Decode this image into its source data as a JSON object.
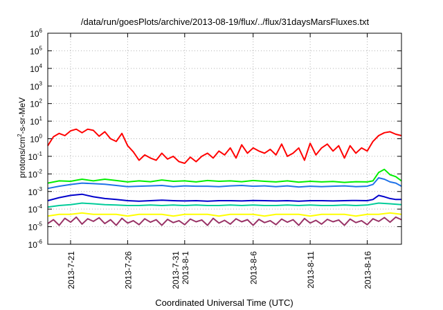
{
  "chart_data": {
    "type": "line",
    "title": "/data/run/goesPlots/archive/2013-08-19/flux/../flux/31daysMarsFluxes.txt",
    "xlabel": "Coordinated Universal Time (UTC)",
    "ylabel_parts": [
      "protons/cm",
      "2",
      "-s-sr-MeV"
    ],
    "x_start": "2013-07-19",
    "x_end": "2013-08-19",
    "xlim": [
      0,
      31
    ],
    "y_scale": "log",
    "ylim": [
      1e-06,
      1000000.0
    ],
    "grid": true,
    "x_ticks": [
      {
        "x": 2,
        "lines": [
          "2013-7-21"
        ]
      },
      {
        "x": 7,
        "lines": [
          "2013-7-26"
        ]
      },
      {
        "x": 12,
        "lines": [
          "2013-7-31",
          "2013-8-1"
        ]
      },
      {
        "x": 18,
        "lines": [
          "2013-8-6"
        ]
      },
      {
        "x": 23,
        "lines": [
          "2013-8-11"
        ]
      },
      {
        "x": 28,
        "lines": [
          "2013-8-16"
        ]
      }
    ],
    "y_ticks": [
      {
        "exp": -6,
        "label": "10",
        "sup": "-6"
      },
      {
        "exp": -5,
        "label": "10",
        "sup": "-5"
      },
      {
        "exp": -4,
        "label": "10",
        "sup": "-4"
      },
      {
        "exp": -3,
        "label": "10",
        "sup": "-3"
      },
      {
        "exp": -2,
        "label": "10",
        "sup": "-2"
      },
      {
        "exp": -1,
        "label": "10",
        "sup": "-1"
      },
      {
        "exp": 0,
        "label": "10",
        "sup": "0"
      },
      {
        "exp": 1,
        "label": "10",
        "sup": "1"
      },
      {
        "exp": 2,
        "label": "10",
        "sup": "2"
      },
      {
        "exp": 3,
        "label": "10",
        "sup": "3"
      },
      {
        "exp": 4,
        "label": "10",
        "sup": "4"
      },
      {
        "exp": 5,
        "label": "10",
        "sup": "5"
      },
      {
        "exp": 6,
        "label": "10",
        "sup": "6"
      }
    ],
    "series": [
      {
        "color": "#ff0000",
        "x": [
          0,
          0.5,
          1,
          1.5,
          2,
          2.5,
          3,
          3.5,
          4,
          4.5,
          5,
          5.5,
          6,
          6.5,
          7,
          7.5,
          8,
          8.5,
          9,
          9.5,
          10,
          10.5,
          11,
          11.5,
          12,
          12.5,
          13,
          13.5,
          14,
          14.5,
          15,
          15.5,
          16,
          16.5,
          17,
          17.5,
          18,
          18.5,
          19,
          19.5,
          20,
          20.5,
          21,
          21.5,
          22,
          22.5,
          23,
          23.5,
          24,
          24.5,
          25,
          25.5,
          26,
          26.5,
          27,
          27.5,
          28,
          28.5,
          29,
          29.5,
          30,
          30.5,
          31
        ],
        "y": [
          0.4,
          1.3,
          2.0,
          1.5,
          2.8,
          3.5,
          2.2,
          3.5,
          3.0,
          1.4,
          2.5,
          1.0,
          0.7,
          2.0,
          0.4,
          0.18,
          0.06,
          0.12,
          0.08,
          0.06,
          0.15,
          0.07,
          0.1,
          0.05,
          0.04,
          0.09,
          0.05,
          0.1,
          0.15,
          0.08,
          0.2,
          0.12,
          0.3,
          0.08,
          0.45,
          0.15,
          0.3,
          0.2,
          0.15,
          0.25,
          0.12,
          0.5,
          0.1,
          0.15,
          0.3,
          0.06,
          0.55,
          0.12,
          0.3,
          0.5,
          0.2,
          0.4,
          0.08,
          0.4,
          0.15,
          0.3,
          0.2,
          0.7,
          1.5,
          2.2,
          2.5,
          1.8,
          1.5
        ]
      },
      {
        "color": "#00ee00",
        "x": [
          0,
          1,
          2,
          3,
          4,
          5,
          6,
          7,
          8,
          9,
          10,
          11,
          12,
          13,
          14,
          15,
          16,
          17,
          18,
          19,
          20,
          21,
          22,
          23,
          24,
          25,
          26,
          27,
          28,
          28.5,
          29,
          29.5,
          30,
          30.5,
          31
        ],
        "y": [
          0.003,
          0.004,
          0.0038,
          0.005,
          0.004,
          0.005,
          0.0042,
          0.0035,
          0.004,
          0.0036,
          0.0045,
          0.0038,
          0.004,
          0.0035,
          0.0042,
          0.0038,
          0.004,
          0.0036,
          0.0042,
          0.0038,
          0.0035,
          0.004,
          0.0034,
          0.0038,
          0.0035,
          0.0037,
          0.0033,
          0.0036,
          0.0035,
          0.004,
          0.012,
          0.018,
          0.009,
          0.007,
          0.004
        ]
      },
      {
        "color": "#1e72e8",
        "x": [
          0,
          1,
          2,
          3,
          4,
          5,
          6,
          7,
          8,
          9,
          10,
          11,
          12,
          13,
          14,
          15,
          16,
          17,
          18,
          19,
          20,
          21,
          22,
          23,
          24,
          25,
          26,
          27,
          28,
          28.5,
          29,
          29.5,
          30,
          30.5,
          31
        ],
        "y": [
          0.0015,
          0.002,
          0.0025,
          0.003,
          0.0028,
          0.0026,
          0.0022,
          0.0019,
          0.002,
          0.0021,
          0.0022,
          0.0019,
          0.0021,
          0.002,
          0.002,
          0.0019,
          0.0021,
          0.0022,
          0.002,
          0.0021,
          0.0019,
          0.0021,
          0.0018,
          0.002,
          0.0019,
          0.002,
          0.0021,
          0.0019,
          0.002,
          0.0025,
          0.006,
          0.005,
          0.0035,
          0.003,
          0.002
        ]
      },
      {
        "color": "#0000cc",
        "x": [
          0,
          1,
          2,
          3,
          4,
          5,
          6,
          7,
          8,
          9,
          10,
          11,
          12,
          13,
          14,
          15,
          16,
          17,
          18,
          19,
          20,
          21,
          22,
          23,
          24,
          25,
          26,
          27,
          28,
          28.5,
          29,
          29.5,
          30,
          30.5,
          31
        ],
        "y": [
          0.0003,
          0.00045,
          0.0006,
          0.0007,
          0.0005,
          0.0004,
          0.00035,
          0.0003,
          0.00028,
          0.0003,
          0.00032,
          0.0003,
          0.00029,
          0.0003,
          0.00028,
          0.0003,
          0.0003,
          0.00029,
          0.00031,
          0.0003,
          0.00029,
          0.0003,
          0.00028,
          0.0003,
          0.0003,
          0.00029,
          0.0003,
          0.00031,
          0.0003,
          0.00035,
          0.0006,
          0.0005,
          0.0004,
          0.00035,
          0.00035
        ]
      },
      {
        "color": "#00cc99",
        "x": [
          0,
          1,
          2,
          3,
          4,
          5,
          6,
          7,
          8,
          9,
          10,
          11,
          12,
          13,
          14,
          15,
          16,
          17,
          18,
          19,
          20,
          21,
          22,
          23,
          24,
          25,
          26,
          27,
          28,
          29,
          30,
          31
        ],
        "y": [
          0.00013,
          0.00016,
          0.00018,
          0.00022,
          0.0002,
          0.00018,
          0.00017,
          0.00016,
          0.00016,
          0.00017,
          0.00016,
          0.00017,
          0.00016,
          0.00017,
          0.00016,
          0.00016,
          0.00017,
          0.00016,
          0.00017,
          0.00016,
          0.00016,
          0.00017,
          0.00016,
          0.00017,
          0.00016,
          0.00016,
          0.00017,
          0.00016,
          0.00017,
          0.00022,
          0.0002,
          0.00018
        ]
      },
      {
        "color": "#ffff00",
        "x": [
          0,
          1,
          2,
          3,
          4,
          5,
          6,
          7,
          8,
          9,
          10,
          11,
          12,
          13,
          14,
          15,
          16,
          17,
          18,
          19,
          20,
          21,
          22,
          23,
          24,
          25,
          26,
          27,
          28,
          29,
          30,
          31
        ],
        "y": [
          4e-05,
          5e-05,
          5e-05,
          6e-05,
          5e-05,
          5e-05,
          5e-05,
          4e-05,
          5e-05,
          5e-05,
          5e-05,
          4e-05,
          5e-05,
          5e-05,
          5e-05,
          4e-05,
          5e-05,
          5e-05,
          5e-05,
          4e-05,
          5e-05,
          5e-05,
          5e-05,
          4e-05,
          5e-05,
          5e-05,
          5e-05,
          4e-05,
          5e-05,
          5e-05,
          6e-05,
          5e-05
        ]
      },
      {
        "color": "#993366",
        "x": [
          0,
          0.5,
          1,
          1.5,
          2,
          2.5,
          3,
          3.5,
          4,
          4.5,
          5,
          5.5,
          6,
          6.5,
          7,
          7.5,
          8,
          8.5,
          9,
          9.5,
          10,
          10.5,
          11,
          11.5,
          12,
          12.5,
          13,
          13.5,
          14,
          14.5,
          15,
          15.5,
          16,
          16.5,
          17,
          17.5,
          18,
          18.5,
          19,
          19.5,
          20,
          20.5,
          21,
          21.5,
          22,
          22.5,
          23,
          23.5,
          24,
          24.5,
          25,
          25.5,
          26,
          26.5,
          27,
          27.5,
          28,
          28.5,
          29,
          29.5,
          30,
          30.5,
          31
        ],
        "y": [
          1.5e-05,
          2.5e-05,
          1.2e-05,
          3e-05,
          1.8e-05,
          3.5e-05,
          1.4e-05,
          2.8e-05,
          2e-05,
          3.2e-05,
          1.5e-05,
          2.5e-05,
          1.2e-05,
          3e-05,
          1.6e-05,
          2.2e-05,
          1.3e-05,
          2.8e-05,
          1.8e-05,
          2.5e-05,
          1.2e-05,
          2.6e-05,
          1.7e-05,
          2.2e-05,
          1.3e-05,
          2.7e-05,
          1.9e-05,
          2.4e-05,
          1.2e-05,
          3e-05,
          1.6e-05,
          2.3e-05,
          1.4e-05,
          2.8e-05,
          1.9e-05,
          2.5e-05,
          1.2e-05,
          2.6e-05,
          1.7e-05,
          2.2e-05,
          1.3e-05,
          2.7e-05,
          1.8e-05,
          2.5e-05,
          1.2e-05,
          2.9e-05,
          1.6e-05,
          2.3e-05,
          1.4e-05,
          2.6e-05,
          1.9e-05,
          2.4e-05,
          1.2e-05,
          2.7e-05,
          1.7e-05,
          2.2e-05,
          1.3e-05,
          2.8e-05,
          2e-05,
          3.3e-05,
          1.8e-05,
          3.5e-05,
          2.5e-05
        ]
      }
    ]
  }
}
